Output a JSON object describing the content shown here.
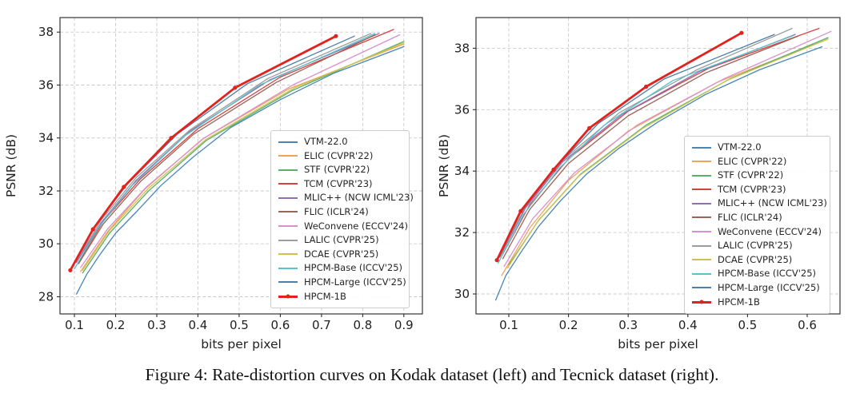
{
  "caption": "Figure 4: Rate-distortion curves on Kodak dataset (left) and Tecnick dataset (right).",
  "chart_data": [
    {
      "type": "line",
      "dataset": "Kodak",
      "title": "",
      "xlabel": "bits per pixel",
      "ylabel": "PSNR (dB)",
      "xlim": [
        0.065,
        0.945
      ],
      "ylim": [
        27.35,
        38.55
      ],
      "grid": true,
      "legend_position": "lower right",
      "xticks": [
        0.1,
        0.2,
        0.3,
        0.4,
        0.5,
        0.6,
        0.7,
        0.8,
        0.9
      ],
      "xtick_labels": [
        "0.1",
        "0.2",
        "0.3",
        "0.4",
        "0.5",
        "0.6",
        "0.7",
        "0.8",
        "0.9"
      ],
      "yticks": [
        28,
        30,
        32,
        34,
        36,
        38
      ],
      "ytick_labels": [
        "28",
        "30",
        "32",
        "34",
        "36",
        "38"
      ],
      "series": [
        {
          "name": "VTM-22.0",
          "color": "#4a86b4",
          "lw": 1.3,
          "marker": "",
          "points": [
            [
              0.105,
              28.1
            ],
            [
              0.13,
              28.85
            ],
            [
              0.16,
              29.55
            ],
            [
              0.2,
              30.4
            ],
            [
              0.25,
              31.2
            ],
            [
              0.31,
              32.2
            ],
            [
              0.39,
              33.3
            ],
            [
              0.48,
              34.4
            ],
            [
              0.6,
              35.45
            ],
            [
              0.73,
              36.45
            ],
            [
              0.9,
              37.45
            ]
          ]
        },
        {
          "name": "ELIC (CVPR'22)",
          "color": "#f0a455",
          "lw": 1.3,
          "marker": "",
          "points": [
            [
              0.115,
              28.95
            ],
            [
              0.18,
              30.45
            ],
            [
              0.27,
              32.05
            ],
            [
              0.41,
              33.95
            ],
            [
              0.62,
              35.85
            ],
            [
              0.9,
              37.55
            ]
          ]
        },
        {
          "name": "STF (CVPR'22)",
          "color": "#56b16b",
          "lw": 1.3,
          "marker": "",
          "points": [
            [
              0.12,
              28.9
            ],
            [
              0.185,
              30.4
            ],
            [
              0.28,
              32.0
            ],
            [
              0.42,
              33.9
            ],
            [
              0.63,
              35.8
            ],
            [
              0.9,
              37.65
            ]
          ]
        },
        {
          "name": "TCM (CVPR'23)",
          "color": "#d6433f",
          "lw": 1.3,
          "marker": "",
          "points": [
            [
              0.11,
              29.3
            ],
            [
              0.17,
              30.85
            ],
            [
              0.26,
              32.45
            ],
            [
              0.4,
              34.35
            ],
            [
              0.6,
              36.3
            ],
            [
              0.875,
              38.1
            ]
          ]
        },
        {
          "name": "MLIC++ (NCW ICML'23)",
          "color": "#8f6fb6",
          "lw": 1.3,
          "marker": "",
          "points": [
            [
              0.105,
              29.3
            ],
            [
              0.165,
              30.8
            ],
            [
              0.25,
              32.4
            ],
            [
              0.38,
              34.25
            ],
            [
              0.575,
              36.2
            ],
            [
              0.84,
              37.95
            ]
          ]
        },
        {
          "name": "FLIC (ICLR'24)",
          "color": "#9a6459",
          "lw": 1.3,
          "marker": "",
          "points": [
            [
              0.11,
              29.25
            ],
            [
              0.17,
              30.75
            ],
            [
              0.26,
              32.35
            ],
            [
              0.39,
              34.15
            ],
            [
              0.59,
              36.1
            ],
            [
              0.83,
              37.9
            ]
          ]
        },
        {
          "name": "WeConvene (ECCV'24)",
          "color": "#da90cc",
          "lw": 1.3,
          "marker": "",
          "points": [
            [
              0.115,
              29.1
            ],
            [
              0.18,
              30.55
            ],
            [
              0.275,
              32.15
            ],
            [
              0.415,
              34.0
            ],
            [
              0.63,
              36.0
            ],
            [
              0.89,
              37.9
            ]
          ]
        },
        {
          "name": "LALIC (CVPR'25)",
          "color": "#9d9d9d",
          "lw": 1.3,
          "marker": "",
          "points": [
            [
              0.105,
              29.35
            ],
            [
              0.165,
              30.9
            ],
            [
              0.25,
              32.5
            ],
            [
              0.38,
              34.3
            ],
            [
              0.57,
              36.25
            ],
            [
              0.82,
              37.95
            ]
          ]
        },
        {
          "name": "DCAE (CVPR'25)",
          "color": "#cfc14f",
          "lw": 1.3,
          "marker": "",
          "points": [
            [
              0.12,
              29.0
            ],
            [
              0.185,
              30.5
            ],
            [
              0.28,
              32.1
            ],
            [
              0.42,
              33.95
            ],
            [
              0.635,
              35.9
            ],
            [
              0.9,
              37.6
            ]
          ]
        },
        {
          "name": "HPCM-Base (ICCV'25)",
          "color": "#57c3ca",
          "lw": 1.3,
          "marker": "",
          "points": [
            [
              0.1,
              29.05
            ],
            [
              0.158,
              30.6
            ],
            [
              0.24,
              32.2
            ],
            [
              0.37,
              34.1
            ],
            [
              0.55,
              36.0
            ],
            [
              0.83,
              37.95
            ]
          ]
        },
        {
          "name": "HPCM-Large (ICCV'25)",
          "color": "#4d7fa9",
          "lw": 1.3,
          "marker": "",
          "points": [
            [
              0.095,
              29.1
            ],
            [
              0.15,
              30.65
            ],
            [
              0.228,
              32.25
            ],
            [
              0.35,
              34.15
            ],
            [
              0.52,
              36.05
            ],
            [
              0.78,
              37.85
            ]
          ]
        },
        {
          "name": "HPCM-1B",
          "color": "#e2231d",
          "lw": 2.8,
          "marker": "o",
          "points": [
            [
              0.09,
              29.0
            ],
            [
              0.145,
              30.55
            ],
            [
              0.22,
              32.15
            ],
            [
              0.335,
              34.0
            ],
            [
              0.49,
              35.9
            ],
            [
              0.735,
              37.85
            ]
          ]
        }
      ]
    },
    {
      "type": "line",
      "dataset": "Tecnick",
      "title": "",
      "xlabel": "bits per pixel",
      "ylabel": "PSNR (dB)",
      "xlim": [
        0.045,
        0.655
      ],
      "ylim": [
        29.35,
        39.0
      ],
      "grid": true,
      "legend_position": "lower right",
      "xticks": [
        0.1,
        0.2,
        0.3,
        0.4,
        0.5,
        0.6
      ],
      "xtick_labels": [
        "0.1",
        "0.2",
        "0.3",
        "0.4",
        "0.5",
        "0.6"
      ],
      "yticks": [
        30,
        32,
        34,
        36,
        38
      ],
      "ytick_labels": [
        "30",
        "32",
        "34",
        "36",
        "38"
      ],
      "series": [
        {
          "name": "VTM-22.0",
          "color": "#4a86b4",
          "lw": 1.3,
          "marker": "",
          "points": [
            [
              0.078,
              29.8
            ],
            [
              0.095,
              30.6
            ],
            [
              0.12,
              31.35
            ],
            [
              0.15,
              32.2
            ],
            [
              0.185,
              33.0
            ],
            [
              0.23,
              33.9
            ],
            [
              0.285,
              34.75
            ],
            [
              0.35,
              35.6
            ],
            [
              0.43,
              36.5
            ],
            [
              0.52,
              37.3
            ],
            [
              0.625,
              38.05
            ]
          ]
        },
        {
          "name": "ELIC (CVPR'22)",
          "color": "#f0a455",
          "lw": 1.3,
          "marker": "",
          "points": [
            [
              0.088,
              30.6
            ],
            [
              0.135,
              32.15
            ],
            [
              0.2,
              33.7
            ],
            [
              0.3,
              35.3
            ],
            [
              0.45,
              36.9
            ],
            [
              0.635,
              38.3
            ]
          ]
        },
        {
          "name": "STF (CVPR'22)",
          "color": "#56b16b",
          "lw": 1.3,
          "marker": "",
          "points": [
            [
              0.1,
              30.95
            ],
            [
              0.15,
              32.4
            ],
            [
              0.22,
              33.9
            ],
            [
              0.33,
              35.5
            ],
            [
              0.47,
              37.0
            ],
            [
              0.635,
              38.35
            ]
          ]
        },
        {
          "name": "TCM (CVPR'23)",
          "color": "#d6433f",
          "lw": 1.3,
          "marker": "",
          "points": [
            [
              0.09,
              31.3
            ],
            [
              0.135,
              32.9
            ],
            [
              0.2,
              34.4
            ],
            [
              0.3,
              35.95
            ],
            [
              0.435,
              37.35
            ],
            [
              0.62,
              38.65
            ]
          ]
        },
        {
          "name": "MLIC++ (NCW ICML'23)",
          "color": "#8f6fb6",
          "lw": 1.3,
          "marker": "",
          "points": [
            [
              0.085,
              31.2
            ],
            [
              0.128,
              32.8
            ],
            [
              0.19,
              34.3
            ],
            [
              0.29,
              35.85
            ],
            [
              0.42,
              37.25
            ],
            [
              0.58,
              38.45
            ]
          ]
        },
        {
          "name": "FLIC (ICLR'24)",
          "color": "#9a6459",
          "lw": 1.3,
          "marker": "",
          "points": [
            [
              0.09,
              31.15
            ],
            [
              0.135,
              32.75
            ],
            [
              0.2,
              34.25
            ],
            [
              0.3,
              35.8
            ],
            [
              0.43,
              37.2
            ],
            [
              0.585,
              38.4
            ]
          ]
        },
        {
          "name": "WeConvene (ECCV'24)",
          "color": "#da90cc",
          "lw": 1.3,
          "marker": "",
          "points": [
            [
              0.092,
              30.9
            ],
            [
              0.14,
              32.45
            ],
            [
              0.21,
              33.95
            ],
            [
              0.315,
              35.5
            ],
            [
              0.46,
              37.0
            ],
            [
              0.64,
              38.55
            ]
          ]
        },
        {
          "name": "LALIC (CVPR'25)",
          "color": "#9d9d9d",
          "lw": 1.3,
          "marker": "",
          "points": [
            [
              0.085,
              31.25
            ],
            [
              0.128,
              32.85
            ],
            [
              0.19,
              34.35
            ],
            [
              0.285,
              35.9
            ],
            [
              0.415,
              37.3
            ],
            [
              0.575,
              38.65
            ]
          ]
        },
        {
          "name": "DCAE (CVPR'25)",
          "color": "#cfc14f",
          "lw": 1.3,
          "marker": "",
          "points": [
            [
              0.098,
              30.85
            ],
            [
              0.148,
              32.35
            ],
            [
              0.218,
              33.85
            ],
            [
              0.325,
              35.4
            ],
            [
              0.465,
              36.95
            ],
            [
              0.635,
              38.3
            ]
          ]
        },
        {
          "name": "HPCM-Base (ICCV'25)",
          "color": "#57c3ca",
          "lw": 1.3,
          "marker": "",
          "points": [
            [
              0.082,
              31.0
            ],
            [
              0.125,
              32.6
            ],
            [
              0.185,
              34.1
            ],
            [
              0.26,
              35.5
            ],
            [
              0.375,
              36.95
            ],
            [
              0.575,
              38.4
            ]
          ]
        },
        {
          "name": "HPCM-Large (ICCV'25)",
          "color": "#4d7fa9",
          "lw": 1.3,
          "marker": "",
          "points": [
            [
              0.08,
              31.05
            ],
            [
              0.12,
              32.65
            ],
            [
              0.18,
              34.15
            ],
            [
              0.25,
              35.55
            ],
            [
              0.36,
              37.0
            ],
            [
              0.545,
              38.45
            ]
          ]
        },
        {
          "name": "HPCM-1B",
          "color": "#e2231d",
          "lw": 2.8,
          "marker": "o",
          "points": [
            [
              0.08,
              31.1
            ],
            [
              0.12,
              32.7
            ],
            [
              0.175,
              34.05
            ],
            [
              0.235,
              35.4
            ],
            [
              0.33,
              36.75
            ],
            [
              0.49,
              38.5
            ]
          ]
        }
      ]
    }
  ]
}
